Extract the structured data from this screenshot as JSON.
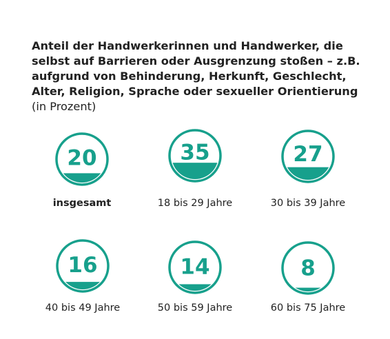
{
  "title": "Anteil der Handwerkerinnen und Handwerker, die selbst auf Barrieren oder Ausgrenzung stoßen – z.B. aufgrund von Behinderung, Herkunft, Geschlecht, Alter, Religion, Sprache oder sexueller Orientierung",
  "unit": "(in Prozent)",
  "colors": {
    "accent": "#17a08c",
    "text": "#222222",
    "background": "#ffffff"
  },
  "chart_data": {
    "type": "gauge",
    "title": "Anteil der Handwerkerinnen und Handwerker, die selbst auf Barrieren oder Ausgrenzung stoßen – z.B. aufgrund von Behinderung, Herkunft, Geschlecht, Alter, Religion, Sprache oder sexueller Orientierung",
    "unit": "(in Prozent)",
    "categories": [
      "insgesamt",
      "18 bis 29 Jahre",
      "30 bis 39 Jahre",
      "40 bis 49 Jahre",
      "50 bis 59 Jahre",
      "60 bis 75 Jahre"
    ],
    "values": [
      20,
      35,
      27,
      16,
      14,
      8
    ],
    "max": 100,
    "highlight": "insgesamt"
  }
}
